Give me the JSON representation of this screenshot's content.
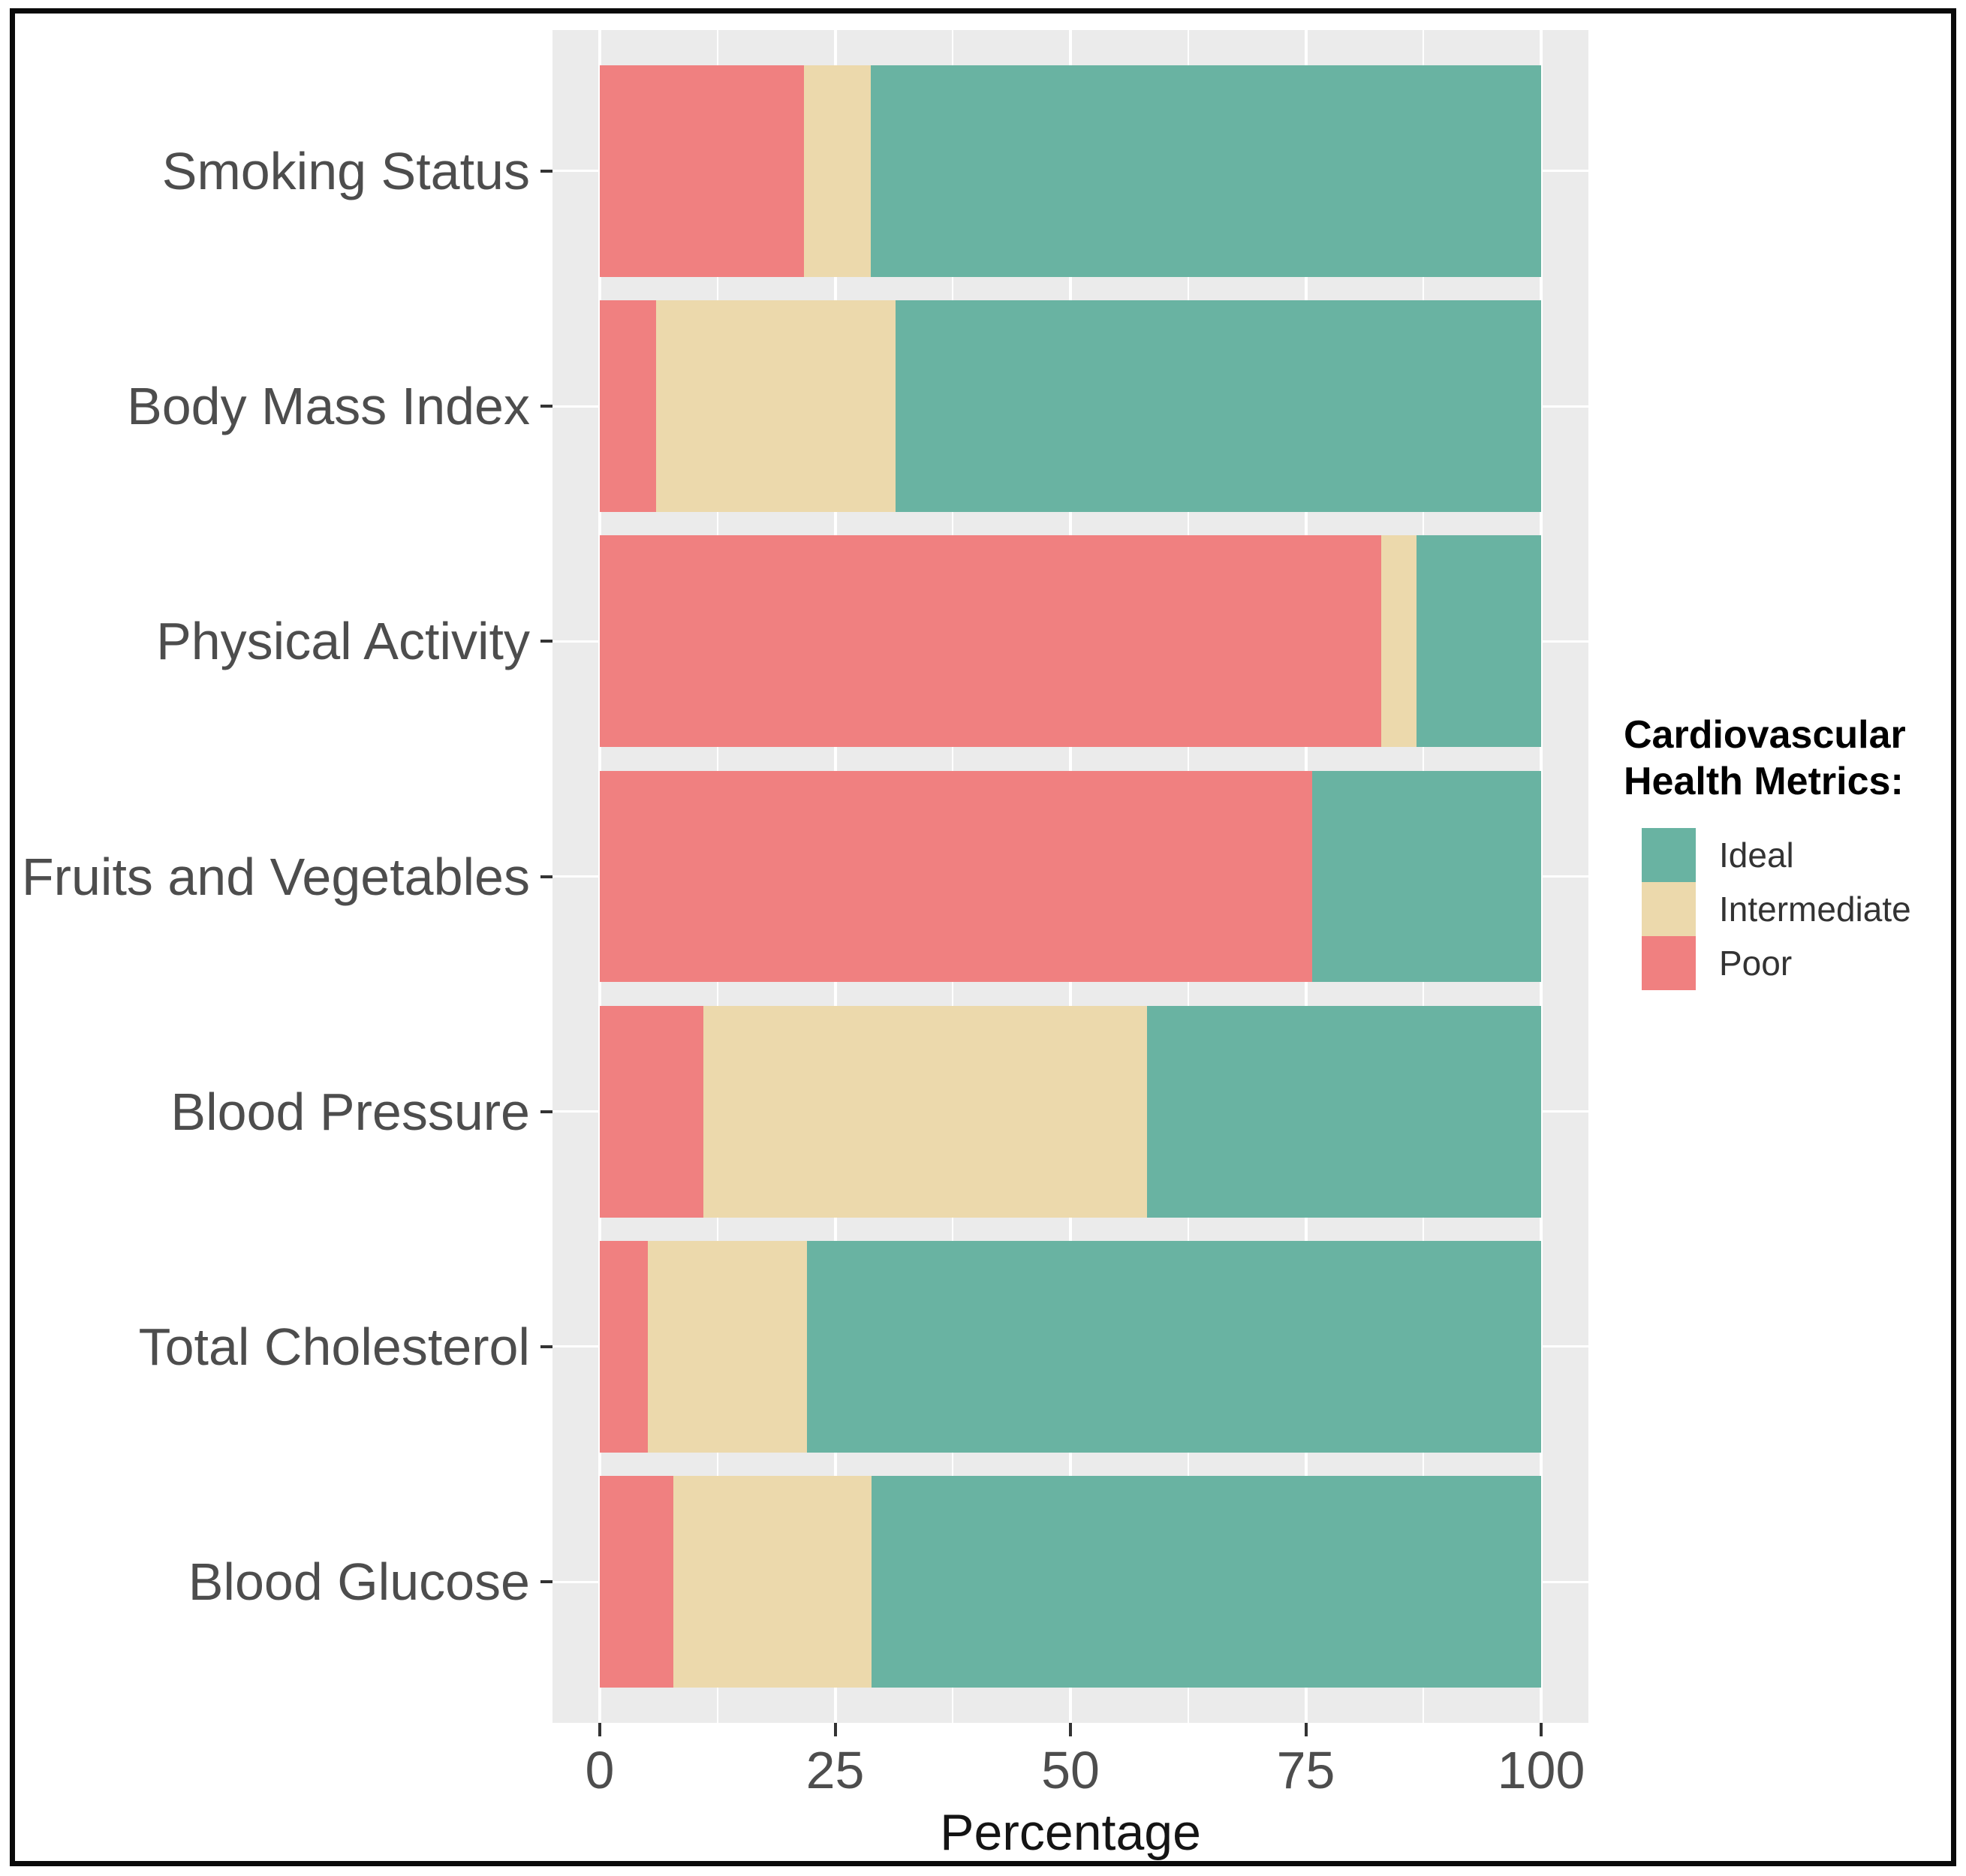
{
  "chart_data": {
    "type": "bar",
    "orientation": "horizontal",
    "stacked": true,
    "title": "",
    "xlabel": "Percentage",
    "ylabel": "",
    "xlim": [
      0,
      100
    ],
    "x_ticks": [
      0,
      25,
      50,
      75,
      100
    ],
    "x_minor_ticks": [
      12.5,
      37.5,
      62.5,
      87.5
    ],
    "grid": true,
    "categories": [
      "Smoking Status",
      "Body Mass Index",
      "Physical Activity",
      "Fruits and Vegetables",
      "Blood Pressure",
      "Total Cholesterol",
      "Blood Glucose"
    ],
    "series": [
      {
        "name": "Poor",
        "color": "#F08080",
        "values": [
          21.7,
          6.0,
          83.0,
          75.7,
          11.0,
          5.1,
          7.8
        ]
      },
      {
        "name": "Intermediate",
        "color": "#ECD9AC",
        "values": [
          7.1,
          25.4,
          3.8,
          0.0,
          47.1,
          16.9,
          21.1
        ]
      },
      {
        "name": "Ideal",
        "color": "#69B3A2",
        "values": [
          71.2,
          68.6,
          13.2,
          24.3,
          41.9,
          78.0,
          71.1
        ]
      }
    ],
    "legend": {
      "position": "right",
      "title_lines": [
        "Cardiovascular",
        "Health Metrics:"
      ],
      "entries": [
        {
          "label": "Ideal",
          "color": "#69B3A2"
        },
        {
          "label": "Intermediate",
          "color": "#ECD9AC"
        },
        {
          "label": "Poor",
          "color": "#F08080"
        }
      ]
    },
    "colors": {
      "panel_background": "#EBEBEB",
      "gridline": "#FFFFFF",
      "axis_text": "#4D4D4D",
      "tick_mark": "#333333",
      "axis_title": "#141414",
      "legend_title": "#000000",
      "legend_text": "#333333",
      "border": "#0A0A0A"
    }
  }
}
